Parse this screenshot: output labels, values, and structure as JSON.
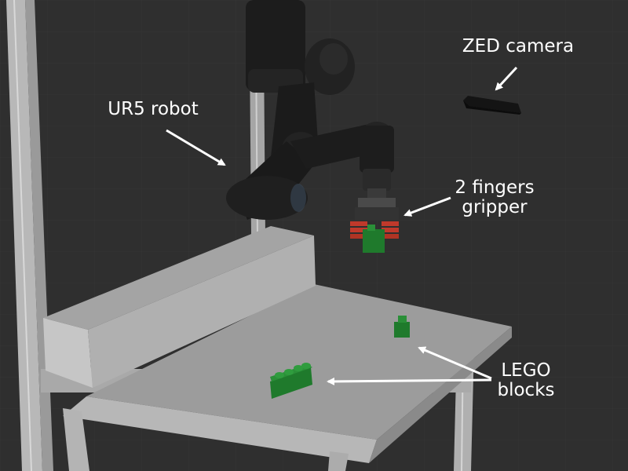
{
  "labels": {
    "robot": "UR5 robot",
    "camera": "ZED camera",
    "gripper_line1": "2 fingers",
    "gripper_line2": "gripper",
    "blocks_line1": "LEGO",
    "blocks_line2": "blocks"
  },
  "colors": {
    "background": "#2f2f2f",
    "grid": "#3a3a3a",
    "table_top": "#9c9c9c",
    "table_side": "#8a8a8a",
    "robot_dark": "#1c1c1c",
    "lego_green": "#1f7a2c",
    "gripper_red": "#c0392b",
    "frame": "#bdbdbd",
    "annotation": "#ffffff"
  }
}
